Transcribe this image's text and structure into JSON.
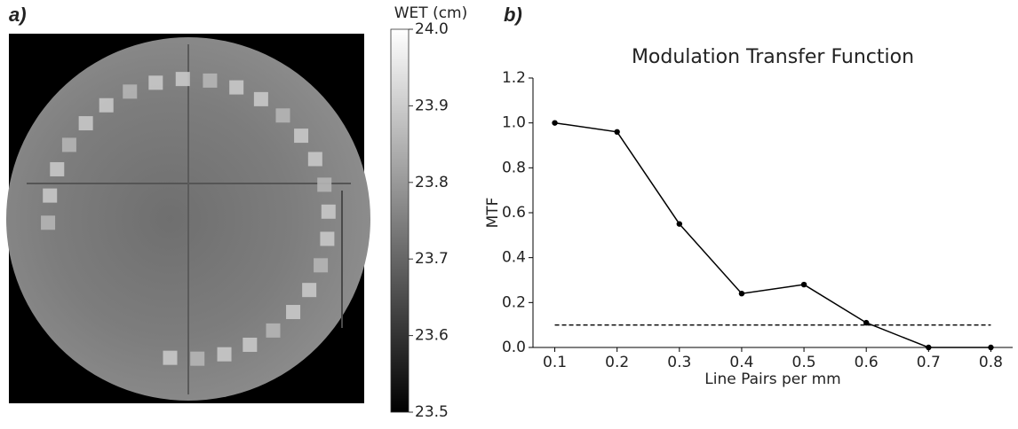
{
  "chart_data": [
    {
      "type": "image",
      "panel_label": "a)",
      "colorbar_label": "WET  (cm)",
      "clim": [
        23.5,
        24.0
      ],
      "cticks": [
        23.5,
        23.6,
        23.7,
        23.8,
        23.9,
        {
          "value": 24.0,
          "label": "24.0"
        }
      ]
    },
    {
      "type": "line",
      "panel_label": "b)",
      "title": "Modulation Transfer Function",
      "xlabel": "Line Pairs per mm",
      "ylabel": "MTF",
      "x": [
        0.1,
        0.2,
        0.3,
        0.4,
        0.5,
        0.6,
        0.7,
        0.8
      ],
      "series": [
        {
          "color": "#000000",
          "values": [
            1.0,
            0.96,
            0.55,
            0.24,
            0.28,
            0.11,
            0.0,
            0.0
          ]
        }
      ],
      "threshold": 0.1,
      "xlim": [
        0.065,
        0.835
      ],
      "xticks": [
        0.1,
        0.2,
        0.3,
        0.4,
        0.5,
        0.6,
        0.7,
        0.8
      ],
      "ylim": [
        0,
        1.2
      ],
      "yticks": [
        {
          "value": 0,
          "label": "0.0"
        },
        0.2,
        0.4,
        0.6,
        0.8,
        {
          "value": 1.0,
          "label": "1.0"
        },
        1.2
      ]
    }
  ]
}
